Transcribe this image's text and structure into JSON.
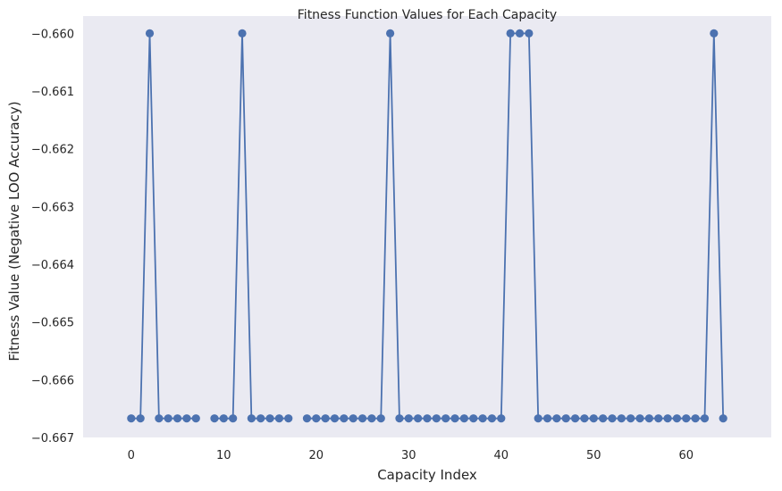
{
  "chart_data": {
    "type": "line",
    "title": "Fitness Function Values for Each Capacity",
    "xlabel": "Capacity Index",
    "ylabel": "Fitness Value (Negative LOO Accuracy)",
    "xlim": [
      -5.2,
      69.2
    ],
    "ylim": [
      -0.667,
      -0.6597
    ],
    "xticks": [
      0,
      10,
      20,
      30,
      40,
      50,
      60
    ],
    "yticks": [
      -0.66,
      -0.661,
      -0.662,
      -0.663,
      -0.664,
      -0.665,
      -0.666,
      -0.667
    ],
    "ytick_labels": [
      "−0.660",
      "−0.661",
      "−0.662",
      "−0.663",
      "−0.664",
      "−0.665",
      "−0.666",
      "−0.667"
    ],
    "xtick_labels": [
      "0",
      "10",
      "20",
      "30",
      "40",
      "50",
      "60"
    ],
    "grid": false,
    "marker": "circle",
    "colors": {
      "line": "#4c72b0",
      "plot_background": "#eaeaf2"
    },
    "series": [
      {
        "x": [
          0,
          1,
          2,
          3,
          4,
          5,
          6,
          7,
          8,
          9,
          10,
          11,
          12,
          13,
          14,
          15,
          16,
          17,
          18,
          19,
          20,
          21,
          22,
          23,
          24,
          25,
          26,
          27,
          28,
          29,
          30,
          31,
          32,
          33,
          34,
          35,
          36,
          37,
          38,
          39,
          40,
          41,
          42,
          43,
          44,
          45,
          46,
          47,
          48,
          49,
          50,
          51,
          52,
          53,
          54,
          55,
          56,
          57,
          58,
          59,
          60,
          61,
          62,
          63,
          64
        ],
        "y": [
          -0.66667,
          -0.66667,
          -0.66,
          -0.66667,
          -0.66667,
          -0.66667,
          -0.66667,
          -0.66667,
          null,
          -0.66667,
          -0.66667,
          -0.66667,
          -0.66,
          -0.66667,
          -0.66667,
          -0.66667,
          -0.66667,
          -0.66667,
          null,
          -0.66667,
          -0.66667,
          -0.66667,
          -0.66667,
          -0.66667,
          -0.66667,
          -0.66667,
          -0.66667,
          -0.66667,
          -0.66,
          -0.66667,
          -0.66667,
          -0.66667,
          -0.66667,
          -0.66667,
          -0.66667,
          -0.66667,
          -0.66667,
          -0.66667,
          -0.66667,
          -0.66667,
          -0.66667,
          -0.66,
          -0.66,
          -0.66,
          -0.66667,
          -0.66667,
          -0.66667,
          -0.66667,
          -0.66667,
          -0.66667,
          -0.66667,
          -0.66667,
          -0.66667,
          -0.66667,
          -0.66667,
          -0.66667,
          -0.66667,
          -0.66667,
          -0.66667,
          -0.66667,
          -0.66667,
          -0.66667,
          -0.66667,
          -0.66,
          -0.66667
        ]
      }
    ]
  }
}
